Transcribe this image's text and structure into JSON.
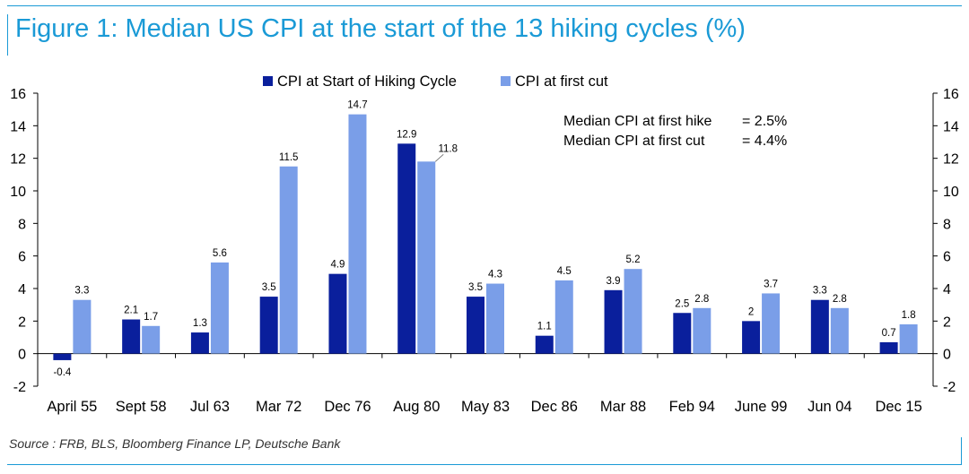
{
  "title": "Figure 1: Median US CPI at the start of the 13 hiking cycles (%)",
  "source": "Source : FRB, BLS, Bloomberg Finance LP, Deutsche Bank",
  "colors": {
    "accent": "#1a9ad6",
    "series_start": "#0a1f9c",
    "series_cut": "#7a9ee8"
  },
  "chart_data": {
    "type": "bar",
    "title": "",
    "xlabel": "",
    "ylabel": "",
    "ylim": [
      -2,
      16
    ],
    "yticks": [
      -2,
      0,
      2,
      4,
      6,
      8,
      10,
      12,
      14,
      16
    ],
    "secondary_axis": true,
    "grid": false,
    "legend_position": "top",
    "categories": [
      "April 55",
      "Sept 58",
      "Jul 63",
      "Mar 72",
      "Dec 76",
      "Aug 80",
      "May 83",
      "Dec 86",
      "Mar 88",
      "Feb 94",
      "June 99",
      "Jun 04",
      "Dec 15"
    ],
    "series": [
      {
        "name": "CPI at Start of Hiking Cycle",
        "color": "#0a1f9c",
        "values": [
          -0.4,
          2.1,
          1.3,
          3.5,
          4.9,
          12.9,
          3.5,
          1.1,
          3.9,
          2.5,
          2,
          3.3,
          0.7
        ],
        "labels": [
          "-0.4",
          "2.1",
          "1.3",
          "3.5",
          "4.9",
          "12.9",
          "3.5",
          "1.1",
          "3.9",
          "2.5",
          "2",
          "3.3",
          "0.7"
        ]
      },
      {
        "name": "CPI at first cut",
        "color": "#7a9ee8",
        "values": [
          3.3,
          1.7,
          5.6,
          11.5,
          14.7,
          11.8,
          4.3,
          4.5,
          5.2,
          2.8,
          3.7,
          2.8,
          1.8
        ],
        "labels": [
          "3.3",
          "1.7",
          "5.6",
          "11.5",
          "14.7",
          "11.8",
          "4.3",
          "4.5",
          "5.2",
          "2.8",
          "3.7",
          "2.8",
          "1.8"
        ]
      }
    ],
    "annotations": [
      {
        "label": "Median CPI at first hike",
        "value": "= 2.5%"
      },
      {
        "label": "Median CPI at first cut",
        "value": "= 4.4%"
      }
    ]
  }
}
